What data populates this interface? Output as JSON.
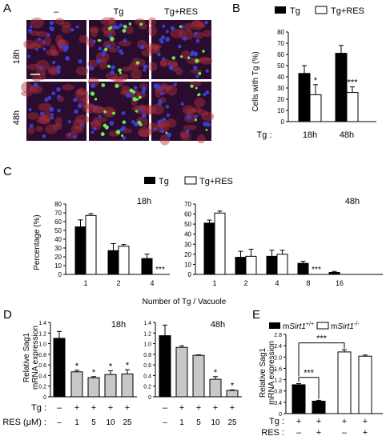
{
  "panelA": {
    "letter": "A",
    "cols": [
      "–",
      "Tg",
      "Tg+RES"
    ],
    "rows": [
      "18h",
      "48h"
    ],
    "colors": {
      "bg": "#2a0d2e",
      "red": "#b0303c",
      "blue": "#3a3fd0",
      "green": "#6af04a"
    }
  },
  "panelB": {
    "letter": "B",
    "legend": [
      "Tg",
      "Tg+RES"
    ],
    "ylabel": "Cells with Tg (%)",
    "tg_label": "Tg :",
    "xcats": [
      "18h",
      "48h"
    ],
    "ticks": [
      "0",
      "10",
      "20",
      "30",
      "40",
      "50",
      "60",
      "70",
      "80"
    ],
    "sig": [
      "*",
      "***"
    ],
    "chart_data": {
      "type": "bar",
      "categories": [
        "18h",
        "48h"
      ],
      "ylim": [
        0,
        80
      ],
      "series": [
        {
          "name": "Tg",
          "values": [
            43,
            61
          ],
          "errors": [
            7,
            7
          ]
        },
        {
          "name": "Tg+RES",
          "values": [
            24,
            26
          ],
          "errors": [
            9,
            5
          ]
        }
      ]
    }
  },
  "panelC": {
    "letter": "C",
    "legend": [
      "Tg",
      "Tg+RES"
    ],
    "ylabel": "Percentage (%)",
    "xlabel": "Number of Tg / Vacuole",
    "left": {
      "title": "18h",
      "ticks": [
        "0",
        "10",
        "20",
        "30",
        "40",
        "50",
        "60",
        "70",
        "80"
      ],
      "sig": "***",
      "chart_data": {
        "type": "bar",
        "categories": [
          "1",
          "2",
          "4"
        ],
        "ylim": [
          0,
          80
        ],
        "series": [
          {
            "name": "Tg",
            "values": [
              54,
              27,
              18
            ],
            "errors": [
              8,
              8,
              5
            ]
          },
          {
            "name": "Tg+RES",
            "values": [
              67,
              32,
              0
            ],
            "errors": [
              2,
              2,
              0
            ]
          }
        ]
      }
    },
    "right": {
      "title": "48h",
      "ticks": [
        "0",
        "10",
        "20",
        "30",
        "40",
        "50",
        "60",
        "70"
      ],
      "sig": "***",
      "chart_data": {
        "type": "bar",
        "categories": [
          "1",
          "2",
          "4",
          "8",
          "16"
        ],
        "ylim": [
          0,
          70
        ],
        "series": [
          {
            "name": "Tg",
            "values": [
              51,
              17,
              18,
              11,
              2
            ],
            "errors": [
              3,
              6,
              6,
              2,
              1
            ]
          },
          {
            "name": "Tg+RES",
            "values": [
              61,
              18,
              20,
              0,
              0
            ],
            "errors": [
              2,
              7,
              4,
              0,
              0
            ]
          }
        ]
      }
    }
  },
  "panelD": {
    "letter": "D",
    "ylabel_l1": "Relative Sag1",
    "ylabel_l2": "mRNA expression",
    "tg_label": "Tg :",
    "res_label": "RES (μM) :",
    "tg_signs": [
      "–",
      "+",
      "+",
      "+",
      "+"
    ],
    "res_vals": [
      "–",
      "1",
      "5",
      "10",
      "25"
    ],
    "left": {
      "title": "18h",
      "ticks": [
        "0",
        "0.2",
        "0.4",
        "0.6",
        "0.8",
        "1.0",
        "1.2",
        "1.4"
      ],
      "sig": [
        "",
        "*",
        "*",
        "*",
        "*"
      ],
      "chart_data": {
        "type": "bar",
        "categories": [
          "–",
          "1",
          "5",
          "10",
          "25"
        ],
        "ylim": [
          0,
          1.4
        ],
        "values": [
          1.1,
          0.47,
          0.36,
          0.42,
          0.43
        ],
        "errors": [
          0.13,
          0.03,
          0.02,
          0.07,
          0.08
        ]
      }
    },
    "right": {
      "title": "48h",
      "ticks": [
        "0",
        "0.2",
        "0.4",
        "0.6",
        "0.8",
        "1.0",
        "1.2",
        "1.4"
      ],
      "sig": [
        "",
        "",
        "",
        "*",
        "*"
      ],
      "chart_data": {
        "type": "bar",
        "categories": [
          "–",
          "1",
          "5",
          "10",
          "25"
        ],
        "ylim": [
          0,
          1.4
        ],
        "values": [
          1.15,
          0.93,
          0.78,
          0.33,
          0.12
        ],
        "errors": [
          0.2,
          0.03,
          0.01,
          0.05,
          0.01
        ]
      }
    }
  },
  "panelE": {
    "letter": "E",
    "legend_pos_prefix": "m",
    "legend_pos_gene": "Sirt1",
    "legend_pos_sup": "+/+",
    "legend_neg_prefix": "m",
    "legend_neg_gene": "Sirt1",
    "legend_neg_sup": "-/-",
    "ylabel_l1": "Relative Sag1",
    "ylabel_l2": "mRNA expression",
    "tg_label": "Tg :",
    "res_label": "RES :",
    "tg_signs": [
      "+",
      "+",
      "+",
      "+"
    ],
    "res_signs": [
      "–",
      "+",
      "–",
      "+"
    ],
    "ticks": [
      "0",
      "0.4",
      "0.8",
      "1.2",
      "1.6",
      "2.0",
      "2.4",
      "2.8"
    ],
    "sig": [
      "***",
      "***"
    ],
    "chart_data": {
      "type": "bar",
      "categories": [
        "Tg+ RES– (+/+)",
        "Tg+ RES+ (+/+)",
        "Tg+ RES– (-/-)",
        "Tg+ RES+ (-/-)"
      ],
      "ylim": [
        0,
        2.8
      ],
      "values": [
        1.02,
        0.44,
        2.18,
        2.03
      ],
      "errors": [
        0.04,
        0.03,
        0.08,
        0.04
      ]
    }
  }
}
